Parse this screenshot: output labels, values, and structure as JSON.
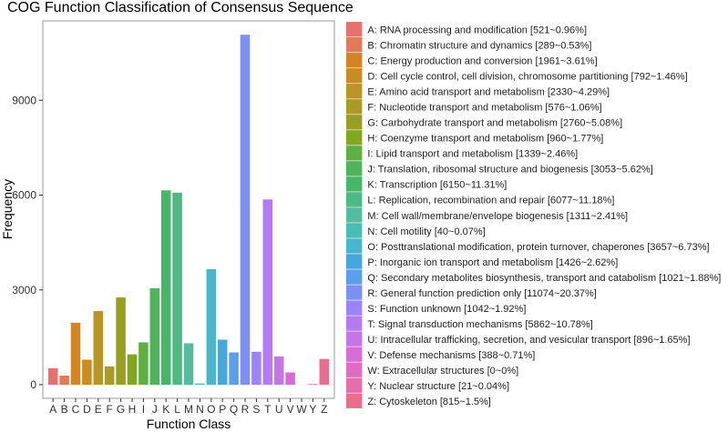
{
  "chart_data": {
    "type": "bar",
    "title": "COG Function Classification of Consensus Sequence",
    "xlabel": "Function Class",
    "ylabel": "Frequency",
    "ylim": [
      0,
      11600
    ],
    "yticks": [
      0,
      3000,
      6000,
      9000
    ],
    "grid": false,
    "legend_position": "right",
    "categories": [
      "A",
      "B",
      "C",
      "D",
      "E",
      "F",
      "G",
      "H",
      "I",
      "J",
      "K",
      "L",
      "M",
      "N",
      "O",
      "P",
      "Q",
      "R",
      "S",
      "T",
      "U",
      "V",
      "W",
      "Y",
      "Z"
    ],
    "values": [
      521,
      289,
      1961,
      792,
      2330,
      576,
      2760,
      960,
      1339,
      3053,
      6150,
      6077,
      1311,
      40,
      3657,
      1426,
      1021,
      11074,
      1042,
      5862,
      896,
      388,
      0,
      21,
      815
    ],
    "colors": [
      "#E8716F",
      "#E07A5A",
      "#D38423",
      "#C78C22",
      "#BB9426",
      "#A99B23",
      "#989E22",
      "#82A71F",
      "#5FAF44",
      "#4FB359",
      "#47B66B",
      "#4DB984",
      "#56BB9F",
      "#4CBDB4",
      "#4AB6CB",
      "#44A8DE",
      "#5D9EEB",
      "#7E8FF2",
      "#9B85F6",
      "#B57AF2",
      "#C674E6",
      "#D66DD5",
      "#E16BC2",
      "#E66CAA",
      "#E96E8E"
    ],
    "legend": [
      "A: RNA processing and modification [521~0.96%]",
      "B: Chromatin structure and dynamics [289~0.53%]",
      "C: Energy production and conversion [1961~3.61%]",
      "D: Cell cycle control, cell division, chromosome partitioning [792~1.46%]",
      "E: Amino acid transport and metabolism [2330~4.29%]",
      "F: Nucleotide transport and metabolism [576~1.06%]",
      "G: Carbohydrate transport and metabolism [2760~5.08%]",
      "H: Coenzyme transport and metabolism [960~1.77%]",
      "I: Lipid transport and metabolism [1339~2.46%]",
      "J: Translation, ribosomal structure and biogenesis [3053~5.62%]",
      "K: Transcription [6150~11.31%]",
      "L: Replication, recombination and repair [6077~11.18%]",
      "M: Cell wall/membrane/envelope biogenesis [1311~2.41%]",
      "N: Cell motility [40~0.07%]",
      "O: Posttranslational modification, protein turnover, chaperones [3657~6.73%]",
      "P: Inorganic ion transport and metabolism [1426~2.62%]",
      "Q: Secondary metabolites biosynthesis, transport and catabolism [1021~1.88%]",
      "R: General function prediction only [11074~20.37%]",
      "S: Function unknown [1042~1.92%]",
      "T: Signal transduction mechanisms [5862~10.78%]",
      "U: Intracellular trafficking, secretion, and vesicular transport [896~1.65%]",
      "V: Defense mechanisms [388~0.71%]",
      "W: Extracellular structures [0~0%]",
      "Y: Nuclear structure [21~0.04%]",
      "Z: Cytoskeleton [815~1.5%]"
    ]
  }
}
